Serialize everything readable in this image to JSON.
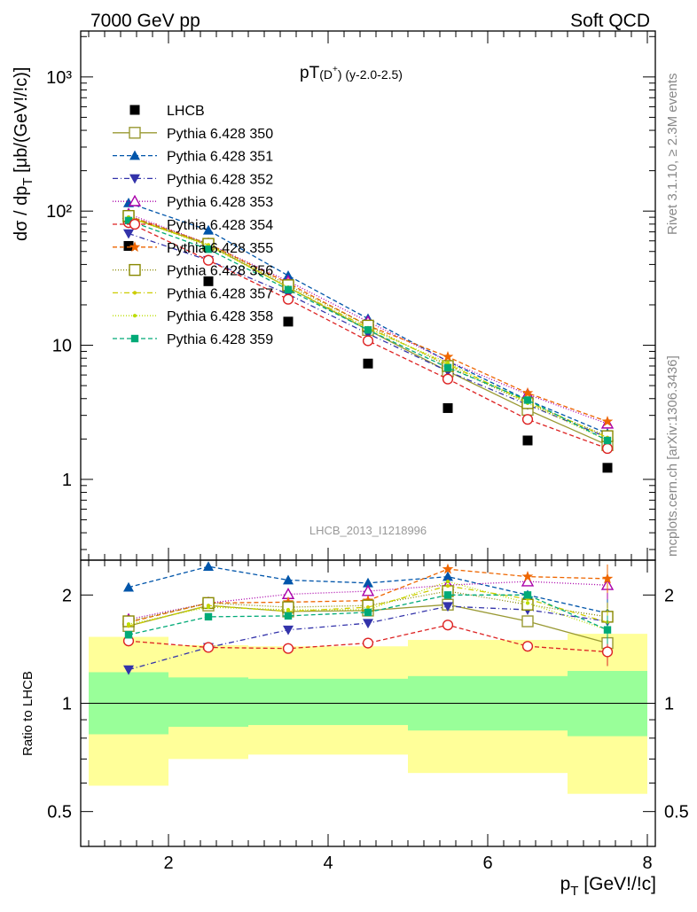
{
  "header": {
    "left": "7000 GeV pp",
    "right": "Soft QCD",
    "side_top": "Rivet 3.1.10, ≥ 2.3M events",
    "side_bottom": "mcplots.cern.ch [arXiv:1306.3436]"
  },
  "chart_data": [
    {
      "type": "line",
      "panel": "main",
      "title_main": "pT",
      "title_sub": "(D",
      "title_sup": "+",
      "title_close": ")",
      "title_rest": " (y-2.0-2.5)",
      "watermark": "LHCB_2013_I1218996",
      "ylabel": "dσ / dp",
      "ylabel_sub": "T",
      "ylabel_unit": " [μb/(GeV!/!c)]",
      "yscale": "log",
      "xlim": [
        0.9,
        8.1
      ],
      "ylim": [
        0.25,
        2200
      ],
      "yticks": [
        {
          "v": 1,
          "label": "1"
        },
        {
          "v": 10,
          "label": "10"
        },
        {
          "v": 100,
          "label": "10²"
        },
        {
          "v": 1000,
          "label": "10³"
        }
      ],
      "x": [
        1.5,
        2.5,
        3.5,
        4.5,
        5.5,
        6.5,
        7.5
      ],
      "data": {
        "name": "LHCB",
        "values": [
          55,
          30,
          15,
          7.3,
          3.4,
          1.95,
          1.22
        ]
      },
      "series": [
        {
          "name": "Pythia 6.428 350",
          "color": "#999933",
          "dash": "",
          "marker": "square-open",
          "values": [
            90,
            56,
            27,
            13,
            6.4,
            3.3,
            1.8
          ]
        },
        {
          "name": "Pythia 6.428 351",
          "color": "#0055aa",
          "dash": "5,3",
          "marker": "triangle-up-filled",
          "values": [
            115,
            72,
            33,
            15.8,
            7.6,
            3.9,
            2.2
          ]
        },
        {
          "name": "Pythia 6.428 352",
          "color": "#3333aa",
          "dash": "6,3,1,3",
          "marker": "triangle-down-filled",
          "values": [
            68,
            43,
            24,
            12.2,
            6.4,
            3.6,
            2.05
          ]
        },
        {
          "name": "Pythia 6.428 353",
          "color": "#aa00aa",
          "dash": "1,2",
          "marker": "triangle-up-open",
          "values": [
            95,
            57,
            30,
            15,
            7.6,
            4.3,
            2.6
          ]
        },
        {
          "name": "Pythia 6.428 354",
          "color": "#dd2222",
          "dash": "5,3",
          "marker": "circle-open",
          "values": [
            82,
            43,
            22,
            10.8,
            5.6,
            2.8,
            1.7
          ]
        },
        {
          "name": "Pythia 6.428 355",
          "color": "#ee6600",
          "dash": "5,3",
          "marker": "star",
          "values": [
            92,
            57,
            29,
            14,
            8.2,
            4.4,
            2.7
          ]
        },
        {
          "name": "Pythia 6.428 356",
          "color": "#888800",
          "dash": "1,2",
          "marker": "square-open",
          "values": [
            92,
            57,
            28,
            14,
            7,
            3.7,
            2.1
          ]
        },
        {
          "name": "Pythia 6.428 357",
          "color": "#cccc00",
          "dash": "6,3,1,3",
          "marker": "dot",
          "values": [
            90,
            56,
            27,
            13.5,
            7.2,
            3.8,
            2.05
          ]
        },
        {
          "name": "Pythia 6.428 358",
          "color": "#bbdd00",
          "dash": "1,2",
          "marker": "dot",
          "values": [
            90,
            55,
            27,
            13.3,
            7.4,
            3.7,
            1.95
          ]
        },
        {
          "name": "Pythia 6.428 359",
          "color": "#00aa77",
          "dash": "5,3",
          "marker": "square-filled",
          "values": [
            85,
            52,
            26,
            13,
            6.8,
            3.9,
            1.95
          ]
        }
      ]
    },
    {
      "type": "line",
      "panel": "ratio",
      "ylabel": "Ratio to LHCB",
      "xlabel": "p",
      "xlabel_sub": "T",
      "xlabel_unit": " [GeV!/!c]",
      "yscale": "log",
      "xlim": [
        0.9,
        8.1
      ],
      "ylim": [
        0.4,
        2.5
      ],
      "xticks": [
        {
          "v": 2,
          "label": "2"
        },
        {
          "v": 4,
          "label": "4"
        },
        {
          "v": 6,
          "label": "6"
        },
        {
          "v": 8,
          "label": "8"
        }
      ],
      "yticks": [
        {
          "v": 0.5,
          "label": "0.5"
        },
        {
          "v": 1,
          "label": "1"
        },
        {
          "v": 2,
          "label": "2"
        }
      ],
      "bins": [
        [
          1,
          2
        ],
        [
          2,
          3
        ],
        [
          3,
          4
        ],
        [
          4,
          5
        ],
        [
          5,
          6
        ],
        [
          6,
          7
        ],
        [
          7,
          8
        ]
      ],
      "band_inner": [
        [
          0.82,
          1.22
        ],
        [
          0.86,
          1.18
        ],
        [
          0.87,
          1.17
        ],
        [
          0.87,
          1.17
        ],
        [
          0.84,
          1.19
        ],
        [
          0.84,
          1.19
        ],
        [
          0.81,
          1.23
        ]
      ],
      "band_outer": [
        [
          0.59,
          1.53
        ],
        [
          0.7,
          1.45
        ],
        [
          0.72,
          1.44
        ],
        [
          0.72,
          1.44
        ],
        [
          0.64,
          1.5
        ],
        [
          0.64,
          1.5
        ],
        [
          0.56,
          1.56
        ]
      ],
      "ratios": [
        [
          1.64,
          1.87,
          1.8,
          1.81,
          1.88,
          1.69,
          1.47
        ],
        [
          2.1,
          2.4,
          2.2,
          2.16,
          2.25,
          2.0,
          1.78
        ],
        [
          1.24,
          1.43,
          1.6,
          1.67,
          1.86,
          1.82,
          1.69
        ],
        [
          1.71,
          1.9,
          2.01,
          2.05,
          2.13,
          2.18,
          2.13
        ],
        [
          1.49,
          1.43,
          1.42,
          1.47,
          1.65,
          1.44,
          1.39
        ],
        [
          1.68,
          1.9,
          1.91,
          1.93,
          2.36,
          2.25,
          2.22
        ],
        [
          1.69,
          1.9,
          1.85,
          1.87,
          2.05,
          1.88,
          1.74
        ],
        [
          1.64,
          1.87,
          1.8,
          1.85,
          2.12,
          1.95,
          1.68
        ],
        [
          1.66,
          1.85,
          1.82,
          1.82,
          2.18,
          1.9,
          1.6
        ],
        [
          1.55,
          1.74,
          1.75,
          1.79,
          2.0,
          2.0,
          1.6
        ]
      ]
    }
  ]
}
